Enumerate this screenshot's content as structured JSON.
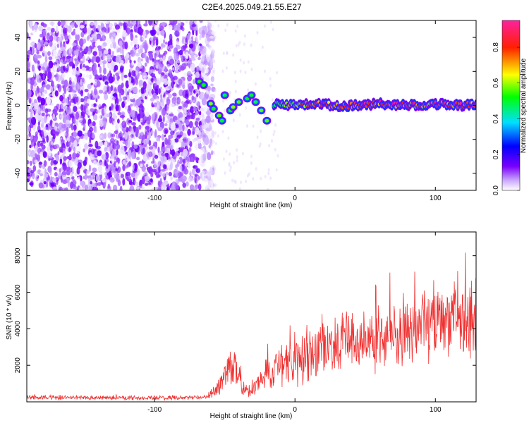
{
  "title": "C2E4.2025.049.21.55.E27",
  "chart_data": [
    {
      "type": "heatmap",
      "xlabel": "Height of straight line (km)",
      "ylabel": "Frequency (Hz)",
      "xlim": [
        -191,
        129
      ],
      "ylim": [
        -50,
        50
      ],
      "xticks": [
        -100,
        0,
        100
      ],
      "yticks": [
        -40,
        -20,
        0,
        20,
        40
      ],
      "colorbar": {
        "label": "Normalized spectral amplitude",
        "range": [
          0,
          0.95
        ],
        "ticks": [
          0.0,
          0.2,
          0.4,
          0.6,
          0.8
        ],
        "tick_labels": [
          "0.0",
          "0.2",
          "0.4",
          "0.6",
          "0.8"
        ],
        "colormap": "rainbow (white, violet, blue, cyan, green, yellow, red, magenta)"
      },
      "noise_region": {
        "x": [
          -191,
          -62
        ],
        "y": [
          -50,
          50
        ],
        "amplitude": [
          0.0,
          0.15
        ]
      },
      "scatter_blobs": [
        {
          "x": -68,
          "y": 14
        },
        {
          "x": -65,
          "y": 12
        },
        {
          "x": -60,
          "y": 1
        },
        {
          "x": -58,
          "y": -2
        },
        {
          "x": -54,
          "y": -6
        },
        {
          "x": -52,
          "y": -9
        },
        {
          "x": -50,
          "y": 6
        },
        {
          "x": -46,
          "y": -3
        },
        {
          "x": -44,
          "y": -1
        },
        {
          "x": -40,
          "y": 2
        },
        {
          "x": -34,
          "y": 4
        },
        {
          "x": -31,
          "y": 6
        },
        {
          "x": -28,
          "y": 2
        },
        {
          "x": -24,
          "y": -3
        },
        {
          "x": -20,
          "y": -9
        }
      ],
      "signal_track": {
        "x": [
          -15,
          0,
          15,
          30,
          45,
          60,
          75,
          90,
          105,
          120,
          129
        ],
        "y": [
          1,
          0,
          1,
          0,
          0,
          1,
          0,
          0,
          1,
          0,
          1
        ],
        "amplitude": [
          0.5,
          0.7,
          0.8,
          0.85,
          0.9,
          0.9,
          0.9,
          0.85,
          0.9,
          0.9,
          0.85
        ]
      }
    },
    {
      "type": "line",
      "xlabel": "Height of straight line (km)",
      "ylabel": "SNR (10 * v/v)",
      "xlim": [
        -191,
        129
      ],
      "ylim": [
        0,
        9300
      ],
      "xticks": [
        -100,
        0,
        100
      ],
      "yticks": [
        2000,
        4000,
        6000,
        8000
      ],
      "color": "#f03030",
      "series": [
        {
          "x": [
            -191,
            -170,
            -150,
            -130,
            -110,
            -90,
            -70,
            -62,
            -55,
            -48,
            -44,
            -40,
            -37,
            -34,
            -30,
            -26,
            -22,
            -20,
            -18,
            -15,
            -10,
            -5,
            0,
            5,
            10,
            20,
            30,
            40,
            50,
            60,
            70,
            80,
            90,
            95,
            100,
            105,
            110,
            115,
            120,
            125,
            129
          ],
          "y": [
            250,
            240,
            230,
            220,
            220,
            210,
            230,
            280,
            700,
            1700,
            2000,
            1600,
            900,
            550,
            700,
            1000,
            1300,
            2000,
            1500,
            1800,
            2000,
            2100,
            2400,
            2500,
            2700,
            3000,
            3200,
            3400,
            3500,
            3700,
            3700,
            3800,
            4200,
            4500,
            4400,
            4600,
            4800,
            5200,
            4800,
            4300,
            4700
          ],
          "spread": [
            150,
            150,
            150,
            150,
            150,
            150,
            150,
            200,
            600,
            1200,
            1300,
            1000,
            600,
            400,
            500,
            700,
            900,
            1300,
            1100,
            1300,
            1500,
            1600,
            1700,
            1800,
            1800,
            2000,
            2100,
            2200,
            2200,
            2300,
            2300,
            2400,
            2500,
            2600,
            2700,
            2700,
            2800,
            3000,
            3200,
            3000,
            2800
          ]
        }
      ]
    }
  ]
}
